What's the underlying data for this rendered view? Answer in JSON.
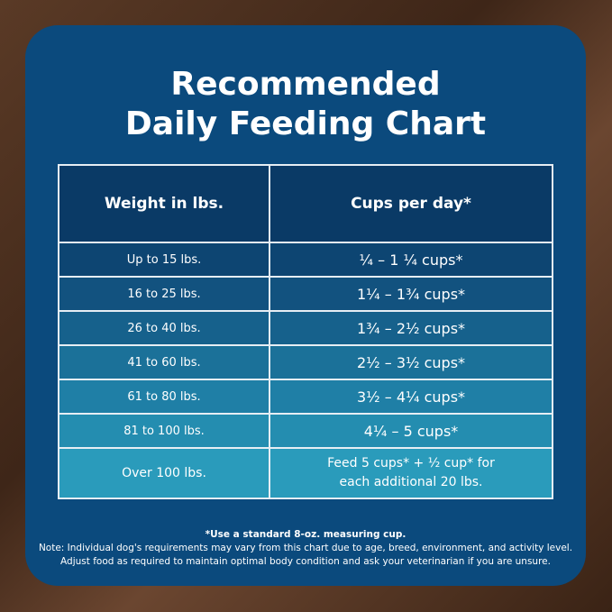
{
  "title": [
    "Recommended",
    "Daily Feeding Chart"
  ],
  "table": {
    "headers": [
      "Weight in lbs.",
      "Cups per day*"
    ],
    "rows": [
      {
        "weight": "Up to 15 lbs.",
        "cups": "¼ – 1 ¼ cups*",
        "color": "#0d4572"
      },
      {
        "weight": "16 to 25 lbs.",
        "cups": "1¼ – 1¾  cups*",
        "color": "#12527f"
      },
      {
        "weight": "26 to 40 lbs.",
        "cups": "1¾ – 2½ cups*",
        "color": "#16618c"
      },
      {
        "weight": "41 to 60 lbs.",
        "cups": "2½ – 3½ cups*",
        "color": "#1b7199"
      },
      {
        "weight": "61 to 80 lbs.",
        "cups": "3½ – 4¼ cups*",
        "color": "#1f7fa6"
      },
      {
        "weight": "81 to 100 lbs.",
        "cups": "4¼ – 5 cups*",
        "color": "#248db0"
      },
      {
        "weight": "Over 100 lbs.",
        "cups": [
          "Feed 5 cups* + ½ cup* for",
          "each additional 20 lbs."
        ],
        "color": "#2a9bbb"
      }
    ]
  },
  "notes": {
    "measure": "*Use a standard 8-oz. measuring cup.",
    "line1": "Note: Individual dog's requirements may vary from this chart due to age, breed, environment, and activity level.",
    "line2": "Adjust food as required to maintain optimal body condition and ask your veterinarian if you are unsure."
  },
  "colors": {
    "panel": "#0b4a7d",
    "header": "#0a3a66",
    "background": "#4a2e1e"
  }
}
